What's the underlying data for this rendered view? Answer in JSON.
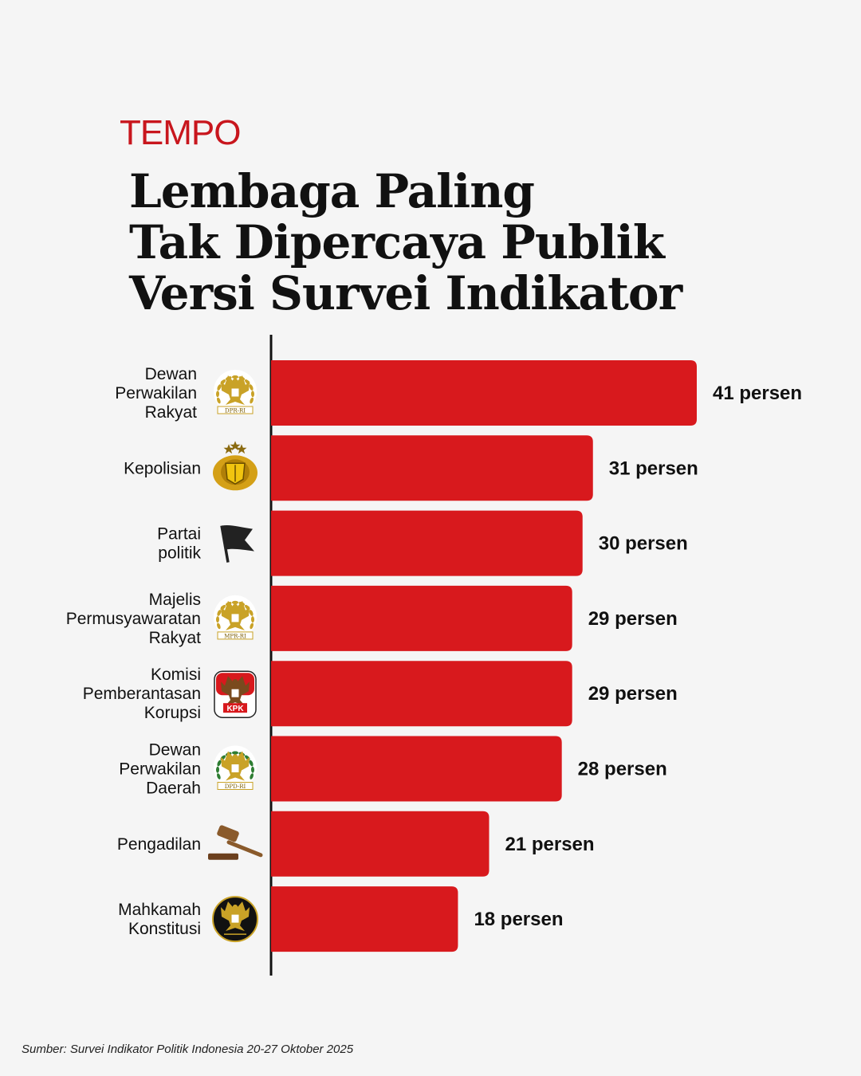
{
  "brand": "TEMPO",
  "title_lines": [
    "Lembaga Paling",
    "Tak Dipercaya Publik",
    "Versi Survei Indikator"
  ],
  "source": "Sumber: Survei Indikator Politik Indonesia 20-27 Oktober 2025",
  "colors": {
    "bar": "#d8191d",
    "brand": "#c8161d",
    "axis": "#111111",
    "background": "#f5f5f5"
  },
  "chart_data": {
    "type": "bar",
    "orientation": "horizontal",
    "categories": [
      "Dewan Perwakilan Rakyat",
      "Kepolisian",
      "Partai politik",
      "Majelis Permusyawaratan Rakyat",
      "Komisi Pemberantasan Korupsi",
      "Dewan Perwakilan Daerah",
      "Pengadilan",
      "Mahkamah Konstitusi"
    ],
    "category_lines": [
      [
        "Dewan",
        "Perwakilan",
        "Rakyat"
      ],
      [
        "Kepolisian"
      ],
      [
        "Partai",
        "politik"
      ],
      [
        "Majelis",
        "Permusyawaratan",
        "Rakyat"
      ],
      [
        "Komisi",
        "Pemberantasan",
        "Korupsi"
      ],
      [
        "Dewan",
        "Perwakilan",
        "Daerah"
      ],
      [
        "Pengadilan"
      ],
      [
        "Mahkamah",
        "Konstitusi"
      ]
    ],
    "values": [
      41,
      31,
      30,
      29,
      29,
      28,
      21,
      18
    ],
    "value_labels": [
      "41 persen",
      "31 persen",
      "30 persen",
      "29 persen",
      "29 persen",
      "28 persen",
      "21 persen",
      "18 persen"
    ],
    "icons": [
      "dpr-emblem-icon",
      "polri-emblem-icon",
      "flag-icon",
      "mpr-emblem-icon",
      "kpk-emblem-icon",
      "dpd-emblem-icon",
      "gavel-icon",
      "mk-emblem-icon"
    ],
    "emblem_texts": [
      "DPR-RI",
      "",
      "",
      "MPR-RI",
      "KPK",
      "DPD-RI",
      "",
      ""
    ],
    "unit": "persen",
    "grid": false,
    "legend": "none"
  }
}
